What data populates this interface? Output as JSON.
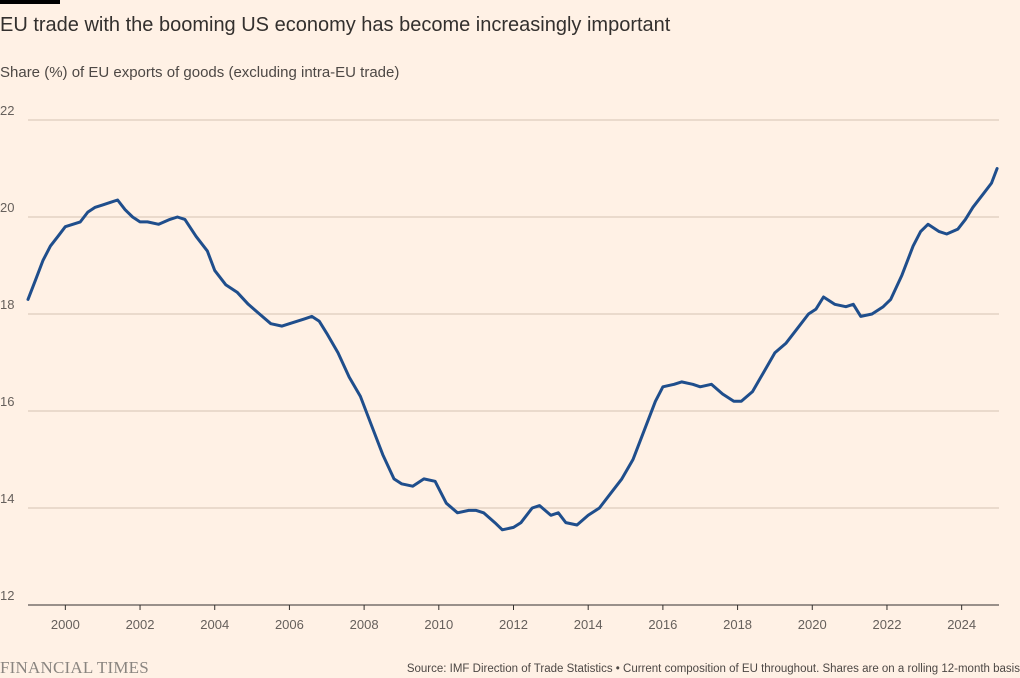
{
  "header": {
    "title": "EU trade with the booming US economy has become increasingly important",
    "subtitle": "Share (%) of EU exports of goods (excluding intra-EU trade)"
  },
  "footer": {
    "logo_text": "FINANCIAL TIMES",
    "source": "Source: IMF Direction of Trade Statistics • Current composition of EU throughout. Shares are on a rolling 12-month basis"
  },
  "colors": {
    "background": "#fff1e5",
    "line": "#1f4e8c",
    "grid": "#d4c4b4",
    "axis": "#33302e"
  },
  "chart_data": {
    "type": "line",
    "title": "EU trade with the booming US economy has become increasingly important",
    "subtitle": "Share (%) of EU exports of goods (excluding intra-EU trade)",
    "ylim": [
      12,
      22
    ],
    "yticks": [
      12,
      14,
      16,
      18,
      20,
      22
    ],
    "xlim": [
      1999,
      2025
    ],
    "xticks": [
      2000,
      2002,
      2004,
      2006,
      2008,
      2010,
      2012,
      2014,
      2016,
      2018,
      2020,
      2022,
      2024
    ],
    "grid": "horizontal",
    "series": [
      {
        "x": [
          1999.0,
          1999.2,
          1999.4,
          1999.6,
          1999.8,
          2000.0,
          2000.2,
          2000.4,
          2000.6,
          2000.8,
          2001.0,
          2001.2,
          2001.4,
          2001.6,
          2001.8,
          2002.0,
          2002.2,
          2002.5,
          2002.8,
          2003.0,
          2003.2,
          2003.5,
          2003.8,
          2004.0,
          2004.3,
          2004.6,
          2004.9,
          2005.2,
          2005.5,
          2005.8,
          2006.0,
          2006.2,
          2006.4,
          2006.6,
          2006.8,
          2007.0,
          2007.3,
          2007.6,
          2007.9,
          2008.2,
          2008.5,
          2008.8,
          2009.0,
          2009.3,
          2009.6,
          2009.9,
          2010.2,
          2010.5,
          2010.8,
          2011.0,
          2011.2,
          2011.5,
          2011.7,
          2012.0,
          2012.2,
          2012.5,
          2012.7,
          2013.0,
          2013.2,
          2013.4,
          2013.7,
          2014.0,
          2014.3,
          2014.6,
          2014.9,
          2015.2,
          2015.5,
          2015.8,
          2016.0,
          2016.3,
          2016.5,
          2016.8,
          2017.0,
          2017.3,
          2017.6,
          2017.9,
          2018.1,
          2018.4,
          2018.7,
          2019.0,
          2019.3,
          2019.6,
          2019.9,
          2020.1,
          2020.3,
          2020.6,
          2020.9,
          2021.1,
          2021.3,
          2021.6,
          2021.9,
          2022.1,
          2022.4,
          2022.7,
          2022.9,
          2023.1,
          2023.4,
          2023.6,
          2023.9,
          2024.1,
          2024.3,
          2024.6,
          2024.8,
          2024.95
        ],
        "values": [
          18.3,
          18.7,
          19.1,
          19.4,
          19.6,
          19.8,
          19.85,
          19.9,
          20.1,
          20.2,
          20.25,
          20.3,
          20.35,
          20.15,
          20.0,
          19.9,
          19.9,
          19.85,
          19.95,
          20.0,
          19.95,
          19.6,
          19.3,
          18.9,
          18.6,
          18.45,
          18.2,
          18.0,
          17.8,
          17.75,
          17.8,
          17.85,
          17.9,
          17.95,
          17.85,
          17.6,
          17.2,
          16.7,
          16.3,
          15.7,
          15.1,
          14.6,
          14.5,
          14.45,
          14.6,
          14.55,
          14.1,
          13.9,
          13.95,
          13.95,
          13.9,
          13.7,
          13.55,
          13.6,
          13.7,
          14.0,
          14.05,
          13.85,
          13.9,
          13.7,
          13.65,
          13.85,
          14.0,
          14.3,
          14.6,
          15.0,
          15.6,
          16.2,
          16.5,
          16.55,
          16.6,
          16.55,
          16.5,
          16.55,
          16.35,
          16.2,
          16.2,
          16.4,
          16.8,
          17.2,
          17.4,
          17.7,
          18.0,
          18.1,
          18.35,
          18.2,
          18.15,
          18.2,
          17.95,
          18.0,
          18.15,
          18.3,
          18.8,
          19.4,
          19.7,
          19.85,
          19.7,
          19.65,
          19.75,
          19.95,
          20.2,
          20.5,
          20.7,
          21.0
        ]
      }
    ]
  }
}
